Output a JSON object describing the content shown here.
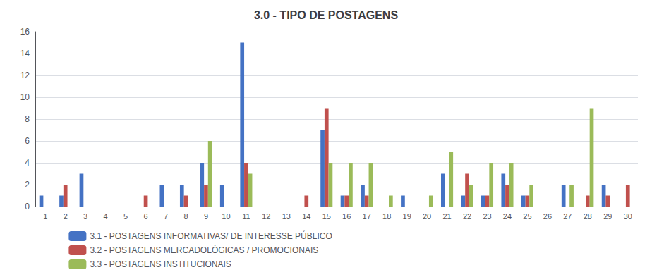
{
  "chart_data": {
    "type": "bar",
    "title": "3.0 - TIPO DE POSTAGENS",
    "categories": [
      1,
      2,
      3,
      4,
      5,
      6,
      7,
      8,
      9,
      10,
      11,
      12,
      13,
      14,
      15,
      16,
      17,
      18,
      19,
      20,
      21,
      22,
      23,
      24,
      25,
      26,
      27,
      28,
      29,
      30
    ],
    "series": [
      {
        "name": "3.1 - POSTAGENS INFORMATIVAS/ DE INTERESSE PÚBLICO",
        "color": "#4472C4",
        "values": [
          1,
          1,
          3,
          0,
          0,
          0,
          2,
          2,
          4,
          2,
          15,
          0,
          0,
          0,
          7,
          1,
          2,
          0,
          1,
          0,
          3,
          1,
          1,
          3,
          1,
          0,
          2,
          0,
          2,
          0
        ]
      },
      {
        "name": "3.2 - POSTAGENS MERCADOLÓGICAS / PROMOCIONAIS",
        "color": "#C0504D",
        "values": [
          0,
          2,
          0,
          0,
          0,
          1,
          0,
          1,
          2,
          0,
          4,
          0,
          0,
          1,
          9,
          1,
          1,
          0,
          0,
          0,
          0,
          3,
          1,
          2,
          1,
          0,
          0,
          1,
          1,
          2
        ]
      },
      {
        "name": "3.3 - POSTAGENS INSTITUCIONAIS",
        "color": "#9BBB59",
        "values": [
          0,
          0,
          0,
          0,
          0,
          0,
          0,
          0,
          6,
          0,
          3,
          0,
          0,
          0,
          4,
          4,
          4,
          1,
          0,
          1,
          5,
          2,
          4,
          4,
          2,
          0,
          2,
          9,
          0,
          0
        ]
      }
    ],
    "ylim": [
      0,
      16
    ],
    "yticks": [
      0,
      2,
      4,
      6,
      8,
      10,
      12,
      14,
      16
    ],
    "grid": true,
    "legend": "bottom"
  }
}
